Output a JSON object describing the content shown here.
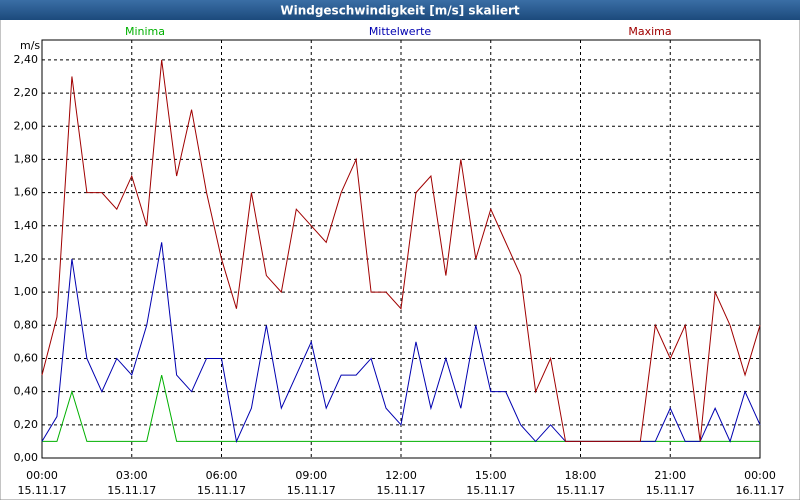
{
  "chart_data": {
    "type": "line",
    "title": "Windgeschwindigkeit [m/s] skaliert",
    "y_unit": "m/s",
    "x": [
      0,
      0.5,
      1,
      1.5,
      2,
      2.5,
      3,
      3.5,
      4,
      4.5,
      5,
      5.5,
      6,
      6.5,
      7,
      7.5,
      8,
      8.5,
      9,
      9.5,
      10,
      10.5,
      11,
      11.5,
      12,
      12.5,
      13,
      13.5,
      14,
      14.5,
      15,
      15.5,
      16,
      16.5,
      17,
      17.5,
      18,
      18.5,
      19,
      19.5,
      20,
      20.5,
      21,
      21.5,
      22,
      22.5,
      23,
      23.5,
      24
    ],
    "series": [
      {
        "name": "Minima",
        "color": "#00b000",
        "values": [
          0.1,
          0.1,
          0.4,
          0.1,
          0.1,
          0.1,
          0.1,
          0.1,
          0.5,
          0.1,
          0.1,
          0.1,
          0.1,
          0.1,
          0.1,
          0.1,
          0.1,
          0.1,
          0.1,
          0.1,
          0.1,
          0.1,
          0.1,
          0.1,
          0.1,
          0.1,
          0.1,
          0.1,
          0.1,
          0.1,
          0.1,
          0.1,
          0.1,
          0.1,
          0.1,
          0.1,
          0.1,
          0.1,
          0.1,
          0.1,
          0.1,
          0.1,
          0.1,
          0.1,
          0.1,
          0.1,
          0.1,
          0.1,
          0.1
        ]
      },
      {
        "name": "Mittelwerte",
        "color": "#0000b0",
        "values": [
          0.1,
          0.25,
          1.2,
          0.6,
          0.4,
          0.6,
          0.5,
          0.8,
          1.3,
          0.5,
          0.4,
          0.6,
          0.6,
          0.1,
          0.3,
          0.8,
          0.3,
          0.5,
          0.7,
          0.3,
          0.5,
          0.5,
          0.6,
          0.3,
          0.2,
          0.7,
          0.3,
          0.6,
          0.3,
          0.8,
          0.4,
          0.4,
          0.2,
          0.1,
          0.2,
          0.1,
          0.1,
          0.1,
          0.1,
          0.1,
          0.1,
          0.1,
          0.3,
          0.1,
          0.1,
          0.3,
          0.1,
          0.4,
          0.2
        ]
      },
      {
        "name": "Maxima",
        "color": "#a00000",
        "values": [
          0.5,
          0.85,
          2.3,
          1.6,
          1.6,
          1.5,
          1.7,
          1.4,
          2.4,
          1.7,
          2.1,
          1.6,
          1.2,
          0.9,
          1.6,
          1.1,
          1.0,
          1.5,
          1.4,
          1.3,
          1.6,
          1.8,
          1.0,
          1.0,
          0.9,
          1.6,
          1.7,
          1.1,
          1.8,
          1.2,
          1.5,
          1.3,
          1.1,
          0.4,
          0.6,
          0.1,
          0.1,
          0.1,
          0.1,
          0.1,
          0.1,
          0.8,
          0.6,
          0.8,
          0.1,
          1.0,
          0.8,
          0.5,
          0.8
        ]
      }
    ],
    "xlim": [
      0,
      24
    ],
    "xticks": [
      {
        "value": 0,
        "label": "00:00"
      },
      {
        "value": 3,
        "label": "03:00"
      },
      {
        "value": 6,
        "label": "06:00"
      },
      {
        "value": 9,
        "label": "09:00"
      },
      {
        "value": 12,
        "label": "12:00"
      },
      {
        "value": 15,
        "label": "15:00"
      },
      {
        "value": 18,
        "label": "18:00"
      },
      {
        "value": 21,
        "label": "21:00"
      },
      {
        "value": 24,
        "label": "00:00"
      }
    ],
    "xtick_dates": [
      "15.11.17",
      "15.11.17",
      "15.11.17",
      "15.11.17",
      "15.11.17",
      "15.11.17",
      "15.11.17",
      "15.11.17",
      "16.11.17"
    ],
    "ylim": [
      0,
      2.52
    ],
    "yticks": [
      {
        "value": 0,
        "label": "0,00"
      },
      {
        "value": 0.2,
        "label": "0,20"
      },
      {
        "value": 0.4,
        "label": "0,40"
      },
      {
        "value": 0.6,
        "label": "0,60"
      },
      {
        "value": 0.8,
        "label": "0,80"
      },
      {
        "value": 1,
        "label": "1,00"
      },
      {
        "value": 1.2,
        "label": "1,20"
      },
      {
        "value": 1.4,
        "label": "1,40"
      },
      {
        "value": 1.6,
        "label": "1,60"
      },
      {
        "value": 1.8,
        "label": "1,80"
      },
      {
        "value": 2,
        "label": "2,00"
      },
      {
        "value": 2.2,
        "label": "2,20"
      },
      {
        "value": 2.4,
        "label": "2,40"
      }
    ],
    "grid": true
  }
}
